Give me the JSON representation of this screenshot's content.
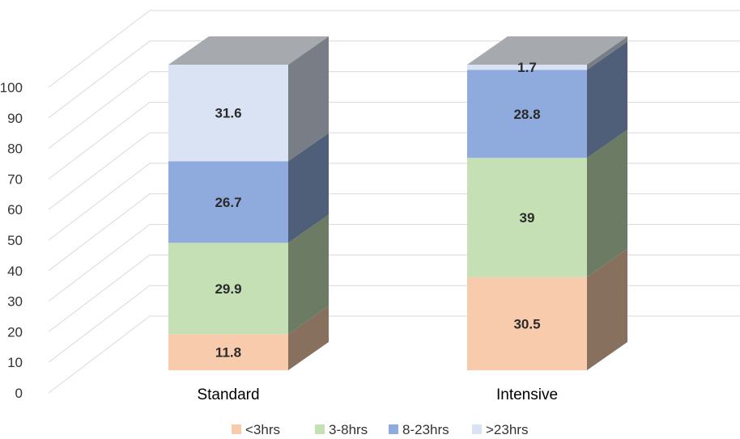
{
  "chart_data": {
    "type": "bar",
    "stacked": true,
    "three_d": true,
    "categories": [
      "Standard",
      "Intensive"
    ],
    "series": [
      {
        "name": "<3hrs",
        "values": [
          11.8,
          30.5
        ],
        "color": "#f8cbad"
      },
      {
        "name": "3-8hrs",
        "values": [
          29.9,
          39
        ],
        "color": "#c5e0b4"
      },
      {
        "name": "8-23hrs",
        "values": [
          26.7,
          28.8
        ],
        "color": "#8faadc"
      },
      {
        "name": ">23hrs",
        "values": [
          31.6,
          1.7
        ],
        "color": "#dae3f3"
      }
    ],
    "title": "",
    "xlabel": "",
    "ylabel": "",
    "ylim": [
      0,
      100
    ],
    "yticks": [
      0,
      10,
      20,
      30,
      40,
      50,
      60,
      70,
      80,
      90,
      100
    ],
    "grid": true,
    "legend": "bottom",
    "data_labels": true
  }
}
